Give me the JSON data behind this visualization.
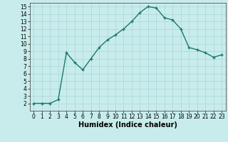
{
  "x": [
    0,
    1,
    2,
    3,
    4,
    5,
    6,
    7,
    8,
    9,
    10,
    11,
    12,
    13,
    14,
    15,
    16,
    17,
    18,
    19,
    20,
    21,
    22,
    23
  ],
  "y": [
    2.0,
    2.0,
    2.0,
    2.5,
    8.8,
    7.5,
    6.5,
    8.0,
    9.5,
    10.5,
    11.2,
    12.0,
    13.0,
    14.2,
    15.0,
    14.8,
    13.5,
    13.2,
    12.0,
    9.5,
    9.2,
    8.8,
    8.2,
    8.5
  ],
  "line_color": "#1a7a6a",
  "marker_color": "#1a7a6a",
  "bg_color": "#c8ecec",
  "grid_color": "#b0d8d8",
  "xlabel": "Humidex (Indice chaleur)",
  "xlim": [
    -0.5,
    23.5
  ],
  "ylim": [
    1,
    15.5
  ],
  "yticks": [
    2,
    3,
    4,
    5,
    6,
    7,
    8,
    9,
    10,
    11,
    12,
    13,
    14,
    15
  ],
  "xticks": [
    0,
    1,
    2,
    3,
    4,
    5,
    6,
    7,
    8,
    9,
    10,
    11,
    12,
    13,
    14,
    15,
    16,
    17,
    18,
    19,
    20,
    21,
    22,
    23
  ],
  "tick_fontsize": 5.5,
  "label_fontsize": 7,
  "marker_size": 2.5,
  "line_width": 1.0
}
